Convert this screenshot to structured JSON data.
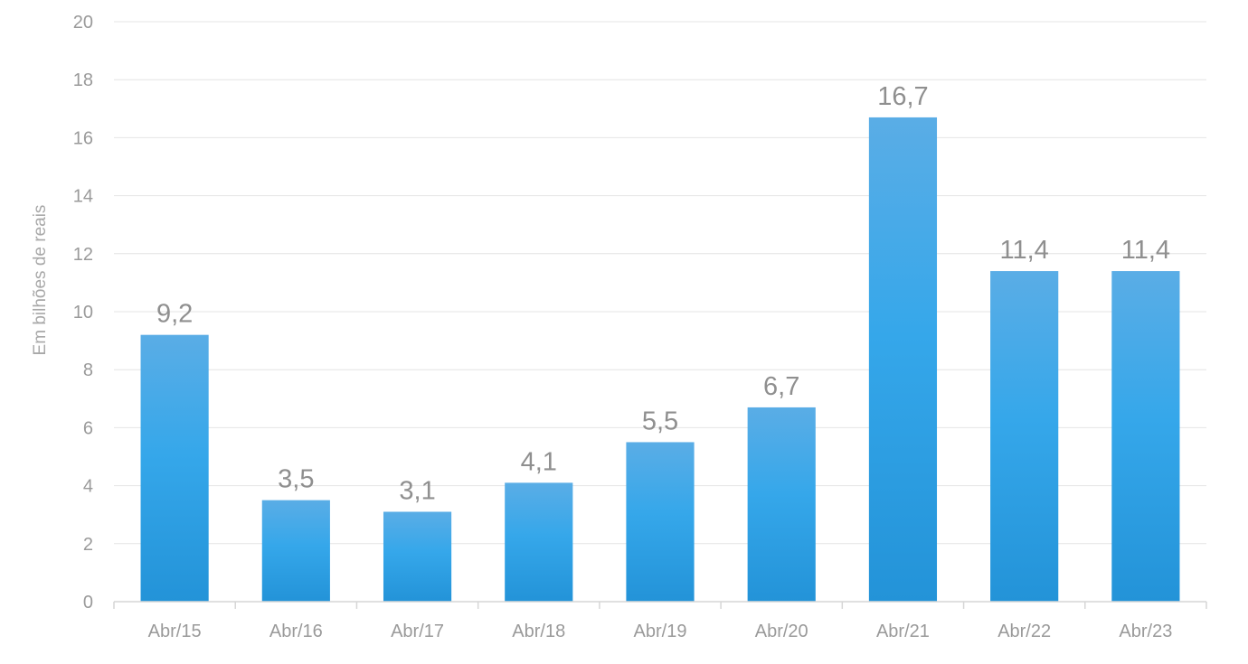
{
  "chart_data": {
    "type": "bar",
    "title": "",
    "xlabel": "",
    "ylabel": "Em bilhões de reais",
    "categories": [
      "Abr/15",
      "Abr/16",
      "Abr/17",
      "Abr/18",
      "Abr/19",
      "Abr/20",
      "Abr/21",
      "Abr/22",
      "Abr/23"
    ],
    "values": [
      9.2,
      3.5,
      3.1,
      4.1,
      5.5,
      6.7,
      16.7,
      11.4,
      11.4
    ],
    "value_labels": [
      "9,2",
      "3,5",
      "3,1",
      "4,1",
      "5,5",
      "6,7",
      "16,7",
      "11,4",
      "11,4"
    ],
    "ylim": [
      0,
      20
    ],
    "yticks": [
      0,
      2,
      4,
      6,
      8,
      10,
      12,
      14,
      16,
      18,
      20
    ],
    "grid": true,
    "legend": "none",
    "colors": {
      "bar_top": "#5aade6",
      "bar_mid": "#35a7ea",
      "bar_bottom": "#2393d8",
      "grid": "#e4e4e4",
      "axis": "#d6d6d6"
    }
  }
}
